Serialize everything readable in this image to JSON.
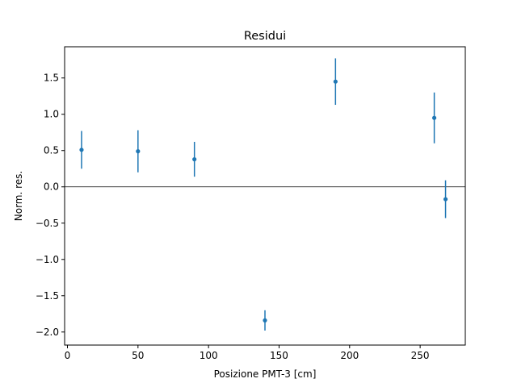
{
  "chart_data": {
    "type": "scatter",
    "title": "Residui",
    "xlabel": "Posizione PMT-3 [cm]",
    "ylabel": "Norm. res.",
    "xlim": [
      -2,
      282
    ],
    "ylim": [
      -2.18,
      1.93
    ],
    "xticks": [
      0,
      50,
      100,
      150,
      200,
      250
    ],
    "yticks": [
      -2.0,
      -1.5,
      -1.0,
      -0.5,
      0.0,
      0.5,
      1.0,
      1.5
    ],
    "xtick_labels": [
      "0",
      "50",
      "100",
      "150",
      "200",
      "250"
    ],
    "ytick_labels": [
      "−2.0",
      "−1.5",
      "−1.0",
      "−0.5",
      "0.0",
      "0.5",
      "1.0",
      "1.5"
    ],
    "reference_line": 0,
    "grid": false,
    "colors": {
      "points": "#1f77b4",
      "reference_line": "#000000"
    },
    "series": [
      {
        "x": [
          10,
          50,
          90,
          140,
          190,
          260,
          268
        ],
        "y": [
          0.51,
          0.49,
          0.38,
          -1.84,
          1.45,
          0.95,
          -0.17
        ],
        "yerr": [
          0.26,
          0.29,
          0.24,
          0.14,
          0.32,
          0.35,
          0.26
        ]
      }
    ]
  }
}
